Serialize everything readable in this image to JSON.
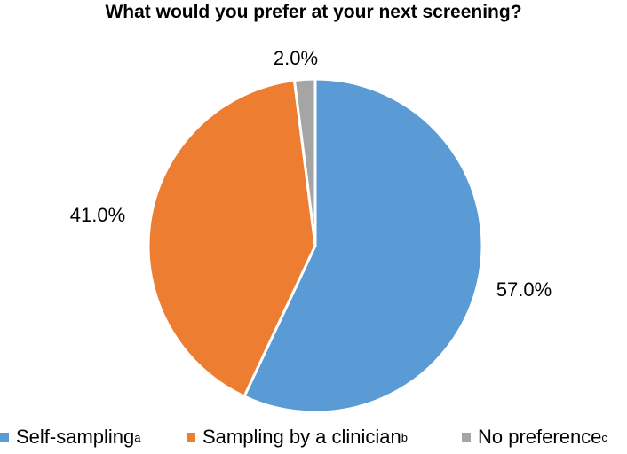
{
  "chart_data": {
    "type": "pie",
    "title": "What would you prefer at your next screening?",
    "slices": [
      {
        "label": "Self-sampling",
        "superscript": "a",
        "value": 57.0,
        "value_label": "57.0%",
        "color": "#5B9BD5"
      },
      {
        "label": "Sampling by a clinician",
        "superscript": "b",
        "value": 41.0,
        "value_label": "41.0%",
        "color": "#ED7D31"
      },
      {
        "label": "No preference",
        "superscript": "c",
        "value": 2.0,
        "value_label": "2.0%",
        "color": "#A5A5A5"
      }
    ],
    "legend_position": "bottom"
  }
}
